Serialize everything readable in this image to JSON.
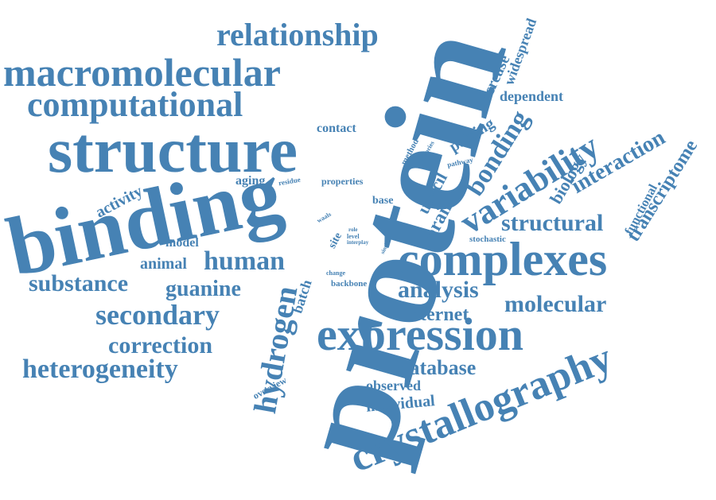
{
  "theme": {
    "word_color": "#4682b4",
    "background": "#ffffff"
  },
  "words": {
    "protein": "protein",
    "binding": "binding",
    "structure": "structure",
    "macromolecular": "macromolecular",
    "computational": "computational",
    "relationship": "relationship",
    "complexes": "complexes",
    "expression": "expression",
    "crystallography": "crystallography",
    "variability": "variability",
    "heterogeneity": "heterogeneity",
    "secondary": "secondary",
    "correction": "correction",
    "substance": "substance",
    "human": "human",
    "guanine": "guanine",
    "hydrogen": "hydrogen",
    "analysis": "analysis",
    "molecular": "molecular",
    "internet": "internet",
    "database": "database",
    "structural": "structural",
    "bonding": "bonding",
    "interaction": "interaction",
    "transcriptome": "transcriptome",
    "biology": "biology",
    "functional": "functional",
    "dependent": "dependent",
    "widespread": "widespread",
    "increase": "increase",
    "pairing": "pairing",
    "brain": "brain",
    "uracil": "uracil",
    "method": "method",
    "theories": "theories",
    "pathway": "pathway",
    "contact": "contact",
    "aging": "aging",
    "residue": "residue",
    "properties": "properties",
    "activity": "activity",
    "base": "base",
    "model": "model",
    "animal": "animal",
    "batch": "batch",
    "site": "site",
    "role": "role",
    "level": "level",
    "interplay": "interplay",
    "single": "single",
    "waals": "waals",
    "change": "change",
    "backbone": "backbone",
    "stochastic": "stochastic",
    "observed": "observed",
    "individual": "individual",
    "overview": "overview"
  }
}
